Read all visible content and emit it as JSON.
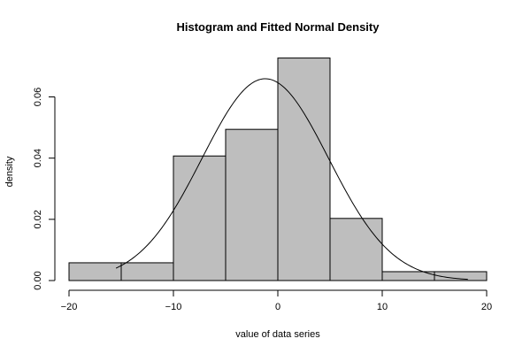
{
  "chart_data": {
    "type": "bar",
    "title": "Histogram and Fitted Normal Density",
    "xlabel": "value of data series",
    "ylabel": "density",
    "xlim": [
      -20,
      20
    ],
    "ylim": [
      0,
      0.072
    ],
    "grid": false,
    "bins": [
      {
        "from": -20,
        "to": -15,
        "density": 0.0058
      },
      {
        "from": -15,
        "to": -10,
        "density": 0.0058
      },
      {
        "from": -10,
        "to": -5,
        "density": 0.0407
      },
      {
        "from": -5,
        "to": 0,
        "density": 0.0494
      },
      {
        "from": 0,
        "to": 5,
        "density": 0.0727
      },
      {
        "from": 5,
        "to": 10,
        "density": 0.0203
      },
      {
        "from": 10,
        "to": 15,
        "density": 0.0029
      },
      {
        "from": 15,
        "to": 20,
        "density": 0.0029
      }
    ],
    "x_ticks": [
      -20,
      -10,
      0,
      10,
      20
    ],
    "x_tick_labels": [
      "−20",
      "−10",
      "0",
      "10",
      "20"
    ],
    "y_ticks": [
      0,
      0.02,
      0.04,
      0.06
    ],
    "y_tick_labels": [
      "0.00",
      "0.02",
      "0.04",
      "0.06"
    ],
    "normal_fit": {
      "mean": -1.2,
      "sd": 6.05,
      "from": -15.5,
      "to": 18.2
    },
    "colors": {
      "bar_fill": "#bebebe",
      "stroke": "#000000"
    }
  }
}
